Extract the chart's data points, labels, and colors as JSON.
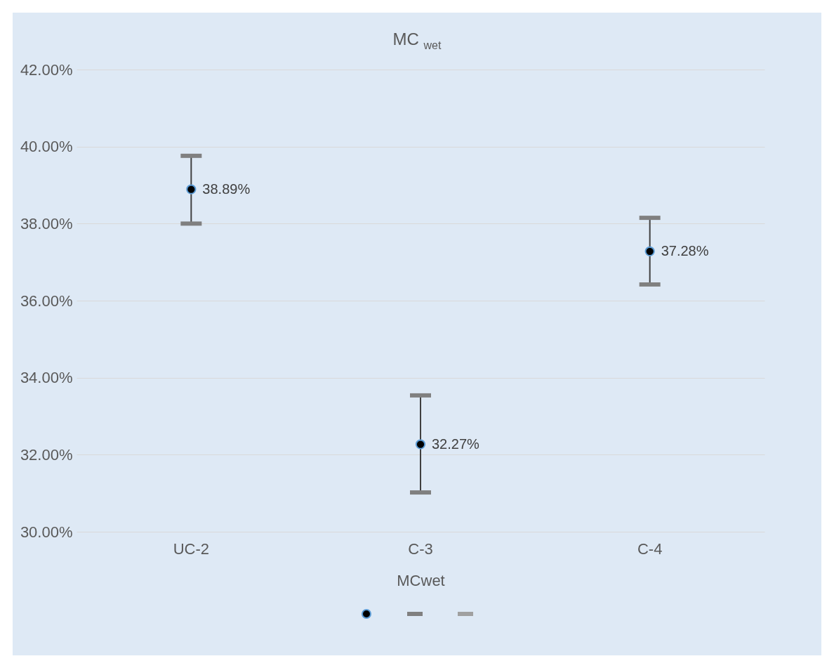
{
  "chart_data": {
    "type": "scatter",
    "title": "MC $_{wet}$",
    "xlabel": "MCwet",
    "categories": [
      "UC-2",
      "C-3",
      "C-4"
    ],
    "series": [
      {
        "color": "#000000",
        "values": [
          38.89,
          32.27,
          37.28
        ],
        "errors": [
          [
            38.0,
            39.76
          ],
          [
            31.02,
            33.54
          ],
          [
            36.42,
            38.15
          ]
        ],
        "value_labels": [
          "38.89%",
          "32.27%",
          "37.28%"
        ]
      }
    ],
    "ylim": [
      30,
      42
    ],
    "yticks": [
      {
        "value": 30,
        "label": "30.00%"
      },
      {
        "value": 32,
        "label": "32.00%"
      },
      {
        "value": 34,
        "label": "34.00%"
      },
      {
        "value": 36,
        "label": "36.00%"
      },
      {
        "value": 38,
        "label": "38.00%"
      },
      {
        "value": 40,
        "label": "40.00%"
      },
      {
        "value": 42,
        "label": "42.00%"
      }
    ],
    "grid": "y",
    "marker": "circle"
  }
}
